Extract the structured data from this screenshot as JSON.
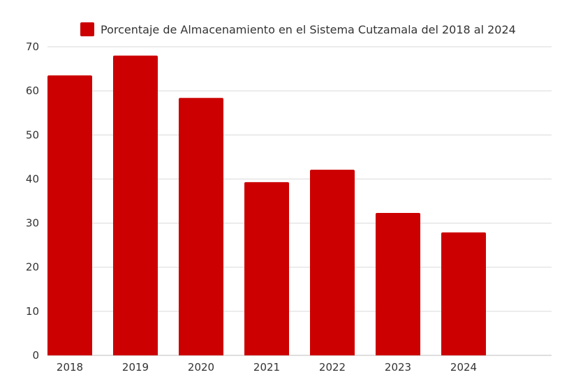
{
  "chart_data": {
    "type": "bar",
    "title": "",
    "xlabel": "",
    "ylabel": "",
    "categories": [
      "2018",
      "2019",
      "2020",
      "2021",
      "2022",
      "2023",
      "2024"
    ],
    "series": [
      {
        "name": "Porcentaje de Almacenamiento en el Sistema Cutzamala del 2018 al 2024",
        "values": [
          63.5,
          68.0,
          58.4,
          39.3,
          42.1,
          32.3,
          27.9
        ],
        "color": "#cc0000"
      }
    ],
    "ylim": [
      0,
      70
    ],
    "yticks": [
      "0",
      "10",
      "20",
      "30",
      "40",
      "50",
      "60",
      "70"
    ],
    "grid": true,
    "legend_position": "top-center"
  }
}
